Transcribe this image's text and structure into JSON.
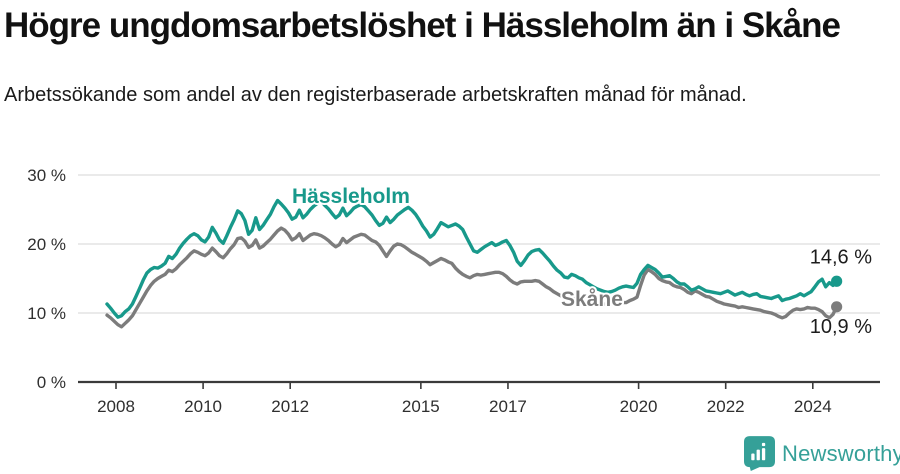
{
  "header": {
    "title": "Högre ungdomsarbetslöshet i Hässleholm än i Skåne",
    "subtitle": "Arbetssökande som andel av den registerbaserade arbetskraften månad för månad."
  },
  "chart_data": {
    "type": "line",
    "title": "Högre ungdomsarbetslöshet i Hässleholm än i Skåne",
    "subtitle": "Arbetssökande som andel av den registerbaserade arbetskraften månad för månad.",
    "x_frequency": "monthly",
    "x_start": "2008-01",
    "x_end": "2024-10",
    "x_ticks": [
      2008,
      2010,
      2012,
      2015,
      2017,
      2020,
      2022,
      2024
    ],
    "y_ticks": [
      0,
      10,
      20,
      30
    ],
    "y_tick_labels": [
      "0 %",
      "10 %",
      "20 %",
      "30 %"
    ],
    "ylim": [
      0,
      32
    ],
    "grid": "horizontal",
    "legend_position": "inline",
    "series": [
      {
        "name": "Skåne",
        "color": "#7c7c7c",
        "end_label": "10,9 %",
        "end_value": 10.9,
        "values": [
          9.7,
          9.3,
          8.8,
          8.3,
          8.0,
          8.5,
          9.0,
          9.6,
          10.5,
          11.4,
          12.3,
          13.2,
          14.0,
          14.6,
          15.0,
          15.3,
          15.6,
          16.2,
          16.0,
          16.4,
          17.0,
          17.5,
          18.0,
          18.6,
          19.0,
          18.8,
          18.5,
          18.3,
          18.7,
          19.4,
          18.9,
          18.3,
          18.0,
          18.6,
          19.3,
          19.9,
          20.8,
          20.9,
          20.4,
          19.5,
          19.8,
          20.6,
          19.4,
          19.7,
          20.2,
          20.7,
          21.3,
          21.9,
          22.3,
          22.0,
          21.4,
          20.6,
          20.9,
          21.5,
          20.5,
          20.9,
          21.3,
          21.5,
          21.4,
          21.2,
          20.9,
          20.5,
          20.0,
          19.6,
          19.9,
          20.8,
          20.2,
          20.6,
          21.0,
          21.2,
          21.4,
          21.3,
          20.9,
          20.5,
          20.3,
          19.8,
          19.0,
          18.2,
          19.0,
          19.7,
          20.0,
          19.9,
          19.6,
          19.2,
          18.8,
          18.5,
          18.2,
          17.9,
          17.5,
          17.0,
          17.3,
          17.6,
          17.9,
          17.7,
          17.4,
          17.2,
          16.5,
          16.0,
          15.6,
          15.3,
          15.1,
          15.4,
          15.6,
          15.5,
          15.6,
          15.7,
          15.8,
          15.9,
          15.9,
          15.7,
          15.3,
          14.8,
          14.4,
          14.2,
          14.5,
          14.6,
          14.6,
          14.6,
          14.7,
          14.6,
          14.2,
          13.8,
          13.5,
          13.1,
          12.8,
          12.5,
          12.3,
          12.3,
          12.5,
          12.2,
          11.9,
          11.7,
          11.5,
          11.4,
          11.3,
          11.2,
          11.2,
          11.3,
          11.2,
          11.3,
          11.4,
          11.4,
          11.5,
          11.5,
          11.8,
          12.0,
          12.3,
          14.0,
          15.5,
          16.3,
          16.0,
          15.6,
          15.0,
          14.7,
          14.5,
          14.4,
          14.0,
          13.8,
          13.7,
          13.4,
          13.0,
          12.8,
          13.2,
          13.0,
          12.7,
          12.4,
          12.3,
          12.0,
          11.7,
          11.5,
          11.3,
          11.2,
          11.1,
          11.0,
          10.8,
          10.9,
          10.8,
          10.7,
          10.6,
          10.5,
          10.4,
          10.2,
          10.1,
          10.0,
          9.8,
          9.5,
          9.3,
          9.5,
          10.0,
          10.4,
          10.6,
          10.5,
          10.6,
          10.8,
          10.7,
          10.7,
          10.5,
          10.2,
          9.6,
          9.3,
          9.8,
          10.9
        ]
      },
      {
        "name": "Hässleholm",
        "color": "#18998b",
        "end_label": "14,6 %",
        "end_value": 14.6,
        "values": [
          11.3,
          10.7,
          10.0,
          9.4,
          9.6,
          10.2,
          10.6,
          11.3,
          12.4,
          13.6,
          14.8,
          15.8,
          16.3,
          16.6,
          16.5,
          16.8,
          17.2,
          18.2,
          17.9,
          18.5,
          19.4,
          20.1,
          20.7,
          21.2,
          21.5,
          21.2,
          20.6,
          20.3,
          21.0,
          22.4,
          21.6,
          20.6,
          20.1,
          21.2,
          22.4,
          23.5,
          24.8,
          24.4,
          23.4,
          21.4,
          22.0,
          23.8,
          22.1,
          22.7,
          23.5,
          24.3,
          25.4,
          26.3,
          25.8,
          25.2,
          24.5,
          23.6,
          23.9,
          24.9,
          23.8,
          24.3,
          25.0,
          25.5,
          25.9,
          26.2,
          25.6,
          25.1,
          24.4,
          23.8,
          24.2,
          25.2,
          24.1,
          24.6,
          25.2,
          25.5,
          25.7,
          25.4,
          24.8,
          24.2,
          23.4,
          22.7,
          23.0,
          23.9,
          23.1,
          23.6,
          24.2,
          24.6,
          25.0,
          25.3,
          24.9,
          24.3,
          23.5,
          22.6,
          21.9,
          21.0,
          21.4,
          22.2,
          23.1,
          22.8,
          22.5,
          22.7,
          22.9,
          22.6,
          22.1,
          21.0,
          20.0,
          19.0,
          18.8,
          19.2,
          19.6,
          19.9,
          20.2,
          19.8,
          20.0,
          20.3,
          20.5,
          19.8,
          18.8,
          17.5,
          16.9,
          17.6,
          18.4,
          18.9,
          19.1,
          19.2,
          18.7,
          18.1,
          17.5,
          16.8,
          16.2,
          15.8,
          15.2,
          15.1,
          15.6,
          15.4,
          15.1,
          14.9,
          14.4,
          14.1,
          13.8,
          13.5,
          13.3,
          13.1,
          13.0,
          13.1,
          13.3,
          13.6,
          13.8,
          13.9,
          13.8,
          13.7,
          14.3,
          15.6,
          16.3,
          16.9,
          16.6,
          16.3,
          15.8,
          15.2,
          15.3,
          15.4,
          15.0,
          14.5,
          14.2,
          14.2,
          13.8,
          13.3,
          13.5,
          13.8,
          13.5,
          13.2,
          13.1,
          13.0,
          12.9,
          12.8,
          13.0,
          13.2,
          12.9,
          12.6,
          12.8,
          13.0,
          12.7,
          12.5,
          12.7,
          12.8,
          12.4,
          12.3,
          12.2,
          12.1,
          12.3,
          12.5,
          11.8,
          12.0,
          12.1,
          12.3,
          12.5,
          12.8,
          12.5,
          12.8,
          13.1,
          13.8,
          14.5,
          14.9,
          13.8,
          14.4,
          14.0,
          14.6
        ]
      }
    ],
    "colors": {
      "grid": "#dedede",
      "axis": "#3a3a3a",
      "tick_text": "#2f2f2f",
      "value_text": "#1c1c1c"
    }
  },
  "footer": {
    "brand": "Newsworthy",
    "brand_color": "#35a098",
    "logo_icon": "newsworthy-speech-bubble-bar-chart-icon"
  }
}
